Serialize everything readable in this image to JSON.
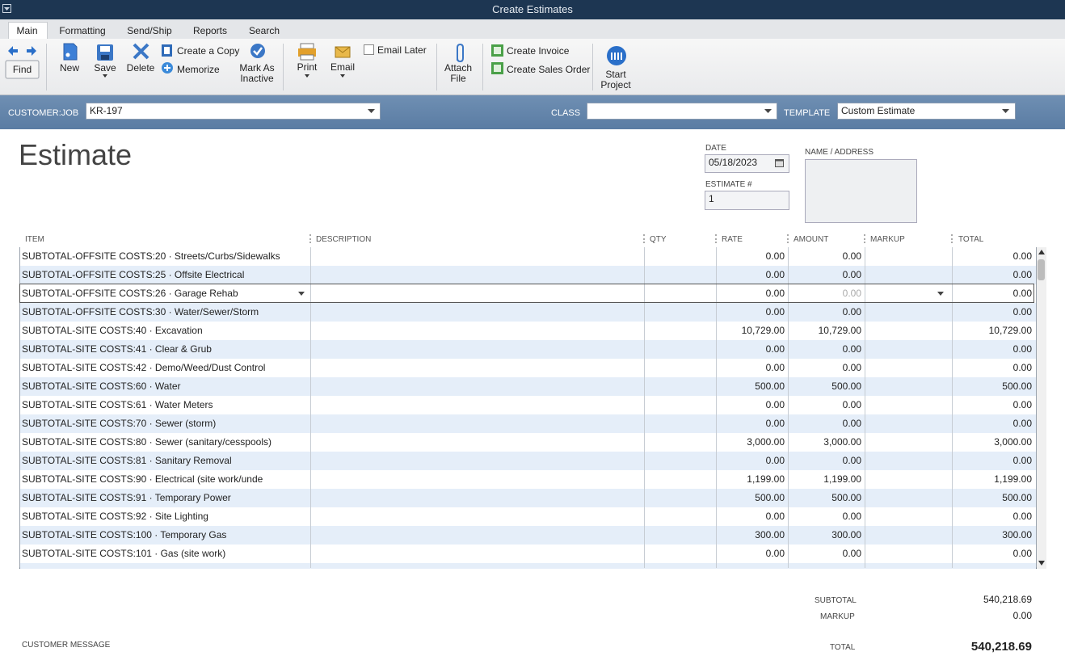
{
  "window": {
    "title": "Create Estimates"
  },
  "tabs": [
    "Main",
    "Formatting",
    "Send/Ship",
    "Reports",
    "Search"
  ],
  "toolbar": {
    "find": "Find",
    "new": "New",
    "save": "Save",
    "delete": "Delete",
    "create_copy": "Create a Copy",
    "memorize": "Memorize",
    "mark_inactive": "Mark As Inactive",
    "print": "Print",
    "email": "Email",
    "email_later": "Email Later",
    "attach": "Attach File",
    "create_invoice": "Create Invoice",
    "create_sales_order": "Create Sales Order",
    "start_project": "Start Project"
  },
  "header": {
    "customer_label": "CUSTOMER:JOB",
    "customer": "KR-197",
    "class_label": "CLASS",
    "template_label": "TEMPLATE",
    "template": "Custom Estimate"
  },
  "form": {
    "title": "Estimate",
    "date_label": "DATE",
    "date": "05/18/2023",
    "number_label": "ESTIMATE #",
    "number": "1",
    "address_label": "NAME / ADDRESS"
  },
  "table": {
    "columns": [
      "ITEM",
      "DESCRIPTION",
      "QTY",
      "RATE",
      "AMOUNT",
      "MARKUP",
      "TOTAL"
    ],
    "rows": [
      {
        "item": "SUBTOTAL-OFFSITE COSTS:20 · Streets/Curbs/Sidewalks",
        "rate": "0.00",
        "amount": "0.00",
        "total": "0.00"
      },
      {
        "item": "SUBTOTAL-OFFSITE COSTS:25 · Offsite Electrical",
        "rate": "0.00",
        "amount": "0.00",
        "total": "0.00"
      },
      {
        "item": "SUBTOTAL-OFFSITE COSTS:26 · Garage Rehab",
        "rate": "0.00",
        "amount": "0.00",
        "total": "0.00"
      },
      {
        "item": "SUBTOTAL-OFFSITE COSTS:30 · Water/Sewer/Storm",
        "rate": "0.00",
        "amount": "0.00",
        "total": "0.00"
      },
      {
        "item": "SUBTOTAL-SITE COSTS:40 · Excavation",
        "rate": "10,729.00",
        "amount": "10,729.00",
        "total": "10,729.00"
      },
      {
        "item": "SUBTOTAL-SITE COSTS:41 · Clear & Grub",
        "rate": "0.00",
        "amount": "0.00",
        "total": "0.00"
      },
      {
        "item": "SUBTOTAL-SITE COSTS:42 · Demo/Weed/Dust Control",
        "rate": "0.00",
        "amount": "0.00",
        "total": "0.00"
      },
      {
        "item": "SUBTOTAL-SITE COSTS:60 · Water",
        "rate": "500.00",
        "amount": "500.00",
        "total": "500.00"
      },
      {
        "item": "SUBTOTAL-SITE COSTS:61 · Water Meters",
        "rate": "0.00",
        "amount": "0.00",
        "total": "0.00"
      },
      {
        "item": "SUBTOTAL-SITE COSTS:70 · Sewer (storm)",
        "rate": "0.00",
        "amount": "0.00",
        "total": "0.00"
      },
      {
        "item": "SUBTOTAL-SITE COSTS:80 · Sewer (sanitary/cesspools)",
        "rate": "3,000.00",
        "amount": "3,000.00",
        "total": "3,000.00"
      },
      {
        "item": "SUBTOTAL-SITE COSTS:81 · Sanitary Removal",
        "rate": "0.00",
        "amount": "0.00",
        "total": "0.00"
      },
      {
        "item": "SUBTOTAL-SITE COSTS:90 · Electrical (site work/unde",
        "rate": "1,199.00",
        "amount": "1,199.00",
        "total": "1,199.00"
      },
      {
        "item": "SUBTOTAL-SITE COSTS:91 · Temporary Power",
        "rate": "500.00",
        "amount": "500.00",
        "total": "500.00"
      },
      {
        "item": "SUBTOTAL-SITE COSTS:92 · Site Lighting",
        "rate": "0.00",
        "amount": "0.00",
        "total": "0.00"
      },
      {
        "item": "SUBTOTAL-SITE COSTS:100 · Temporary Gas",
        "rate": "300.00",
        "amount": "300.00",
        "total": "300.00"
      },
      {
        "item": "SUBTOTAL-SITE COSTS:101 · Gas (site work)",
        "rate": "0.00",
        "amount": "0.00",
        "total": "0.00"
      }
    ]
  },
  "totals": {
    "subtotal_label": "SUBTOTAL",
    "subtotal": "540,218.69",
    "markup_label": "MARKUP",
    "markup": "0.00",
    "total_label": "TOTAL",
    "total": "540,218.69"
  },
  "customer_message_label": "CUSTOMER MESSAGE"
}
